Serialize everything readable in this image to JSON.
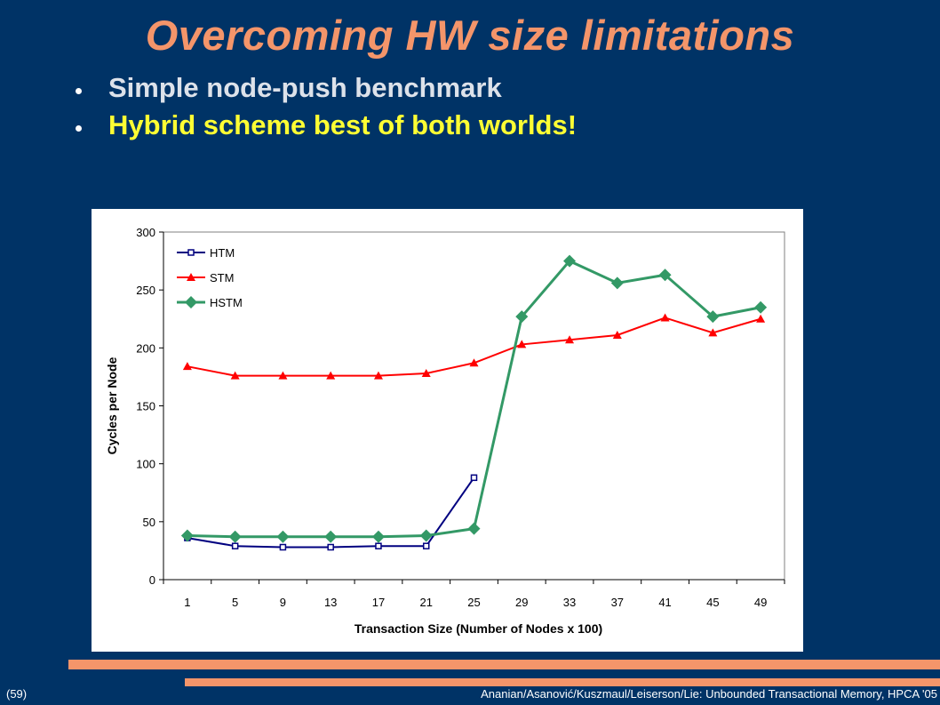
{
  "slide": {
    "title": "Overcoming HW size limitations",
    "bullets": [
      "Simple node-push benchmark",
      "Hybrid scheme best of both worlds!"
    ],
    "page_number": "(59)",
    "footer": "Ananian/Asanović/Kuszmaul/Leiserson/Lie: Unbounded Transactional Memory, HPCA '05",
    "colors": {
      "background": "#003366",
      "title": "#F4956A",
      "accent": "#F4956A",
      "highlight": "#FFFF33"
    }
  },
  "chart_data": {
    "type": "line",
    "title": "",
    "xlabel": "Transaction Size (Number of Nodes x 100)",
    "ylabel": "Cycles per Node",
    "categories": [
      "1",
      "5",
      "9",
      "13",
      "17",
      "21",
      "25",
      "29",
      "33",
      "37",
      "41",
      "45",
      "49"
    ],
    "ylim": [
      0,
      300
    ],
    "yticks": [
      0,
      50,
      100,
      150,
      200,
      250,
      300
    ],
    "grid": false,
    "legend": "top-left",
    "series": [
      {
        "name": "HTM",
        "color": "#000080",
        "marker": "square",
        "values": [
          36,
          29,
          28,
          28,
          29,
          29,
          88,
          null,
          null,
          null,
          null,
          null,
          null
        ]
      },
      {
        "name": "STM",
        "color": "#FF0000",
        "marker": "triangle",
        "values": [
          184,
          176,
          176,
          176,
          176,
          178,
          187,
          203,
          207,
          211,
          226,
          213,
          225
        ]
      },
      {
        "name": "HSTM",
        "color": "#339966",
        "marker": "diamond",
        "values": [
          38,
          37,
          37,
          37,
          37,
          38,
          44,
          227,
          275,
          256,
          263,
          227,
          235
        ]
      }
    ]
  }
}
